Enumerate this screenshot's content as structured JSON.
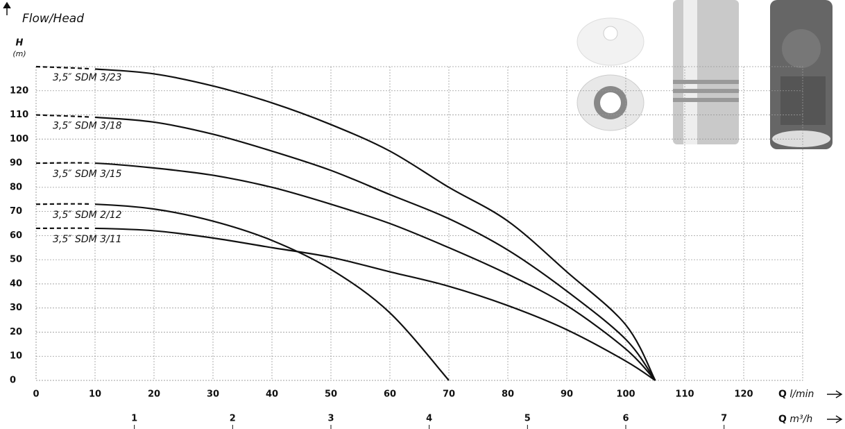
{
  "chart_data": {
    "type": "line",
    "title": "Flow/Head",
    "y_label": "H",
    "y_unit": "(m)",
    "x_label": {
      "symbol": "Q",
      "unit": "l/min"
    },
    "x2_label": {
      "symbol": "Q",
      "unit": "m³/h"
    },
    "xlim": [
      0,
      130
    ],
    "xticks": [
      0,
      10,
      20,
      30,
      40,
      50,
      60,
      70,
      80,
      90,
      100,
      110,
      120
    ],
    "x2lim": [
      0,
      7.8
    ],
    "x2ticks": [
      1,
      2,
      3,
      4,
      5,
      6,
      7
    ],
    "ylim": [
      0,
      130
    ],
    "yticks": [
      0,
      10,
      20,
      30,
      40,
      50,
      60,
      70,
      80,
      90,
      100,
      110,
      120
    ],
    "grid": true,
    "color": "#111111",
    "dashed_below_x": 10,
    "series": [
      {
        "name": "3,5″ SDM 3/23",
        "x": [
          0,
          10,
          20,
          30,
          40,
          50,
          60,
          70,
          80,
          90,
          100,
          105
        ],
        "values": [
          130,
          129,
          127,
          122,
          115,
          106,
          95,
          80,
          66,
          45,
          23,
          0
        ]
      },
      {
        "name": "3,5″ SDM 3/18",
        "x": [
          0,
          10,
          20,
          30,
          40,
          50,
          60,
          70,
          80,
          90,
          100,
          105
        ],
        "values": [
          110,
          109,
          107,
          102,
          95,
          87,
          77,
          67,
          54,
          37,
          17,
          0
        ]
      },
      {
        "name": "3,5″ SDM 3/15",
        "x": [
          0,
          10,
          20,
          30,
          40,
          50,
          60,
          70,
          80,
          90,
          100,
          105
        ],
        "values": [
          90,
          90,
          88,
          85,
          80,
          73,
          65,
          55,
          44,
          31,
          13,
          0
        ]
      },
      {
        "name": "3,5″ SDM 2/12",
        "x": [
          0,
          10,
          20,
          30,
          40,
          50,
          60,
          70
        ],
        "values": [
          73,
          73,
          71,
          66,
          58,
          46,
          28,
          0
        ]
      },
      {
        "name": "3,5″ SDM 3/11",
        "x": [
          0,
          10,
          20,
          30,
          40,
          50,
          60,
          70,
          80,
          90,
          100,
          105
        ],
        "values": [
          63,
          63,
          62,
          59,
          55,
          51,
          45,
          39,
          31,
          21,
          8,
          0
        ]
      }
    ]
  }
}
